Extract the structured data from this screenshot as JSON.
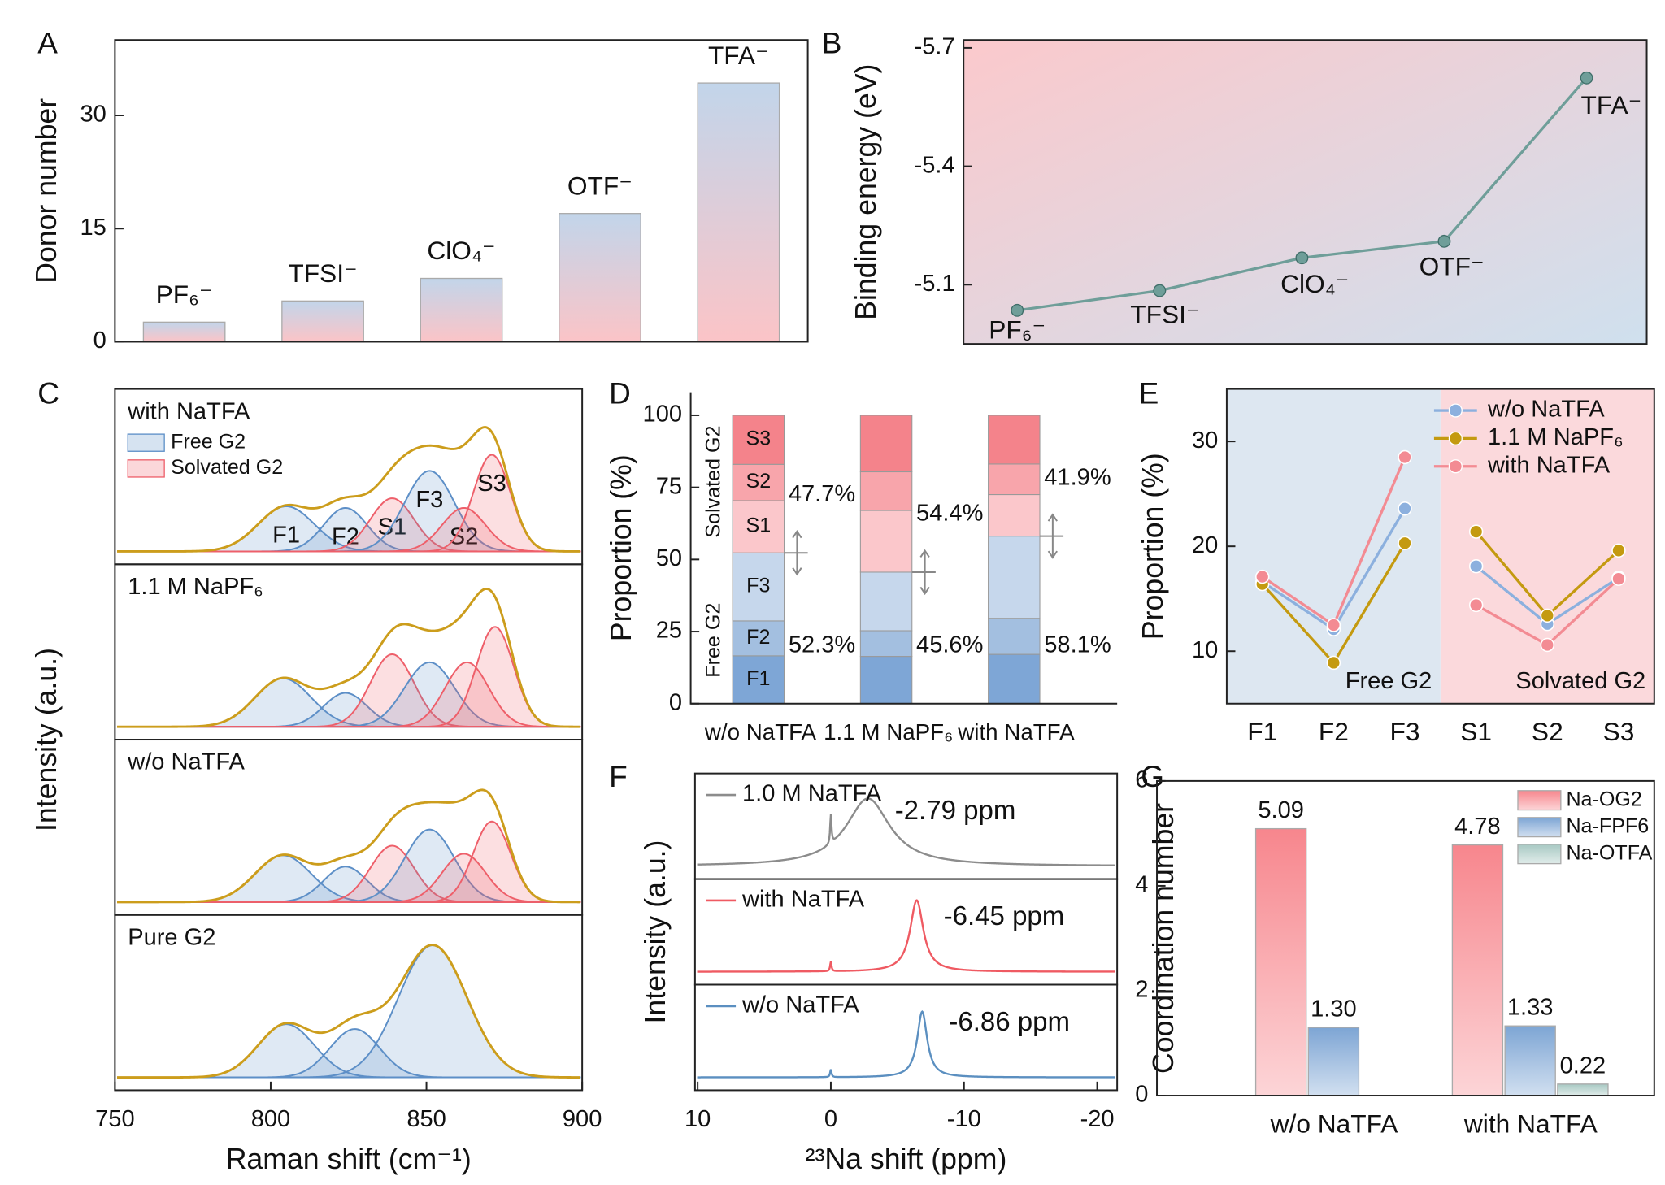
{
  "chart_data": [
    {
      "type": "bar",
      "panel": "A",
      "ylabel": "Donor number",
      "categories": [
        "PF₆⁻",
        "TFSI⁻",
        "ClO₄⁻",
        "OTF⁻",
        "TFA⁻"
      ],
      "values": [
        2.6,
        5.4,
        8.4,
        17.0,
        34.3
      ],
      "colors": [
        "#c2d5ea",
        "#fbc4c7"
      ],
      "ylim": [
        0,
        40
      ],
      "yticks": [
        0,
        15,
        30
      ]
    },
    {
      "type": "line",
      "panel": "B",
      "ylabel": "Binding energy (eV)",
      "categories": [
        "PF₆⁻",
        "TFSI⁻",
        "ClO₄⁻",
        "OTF⁻",
        "TFA⁻"
      ],
      "values": [
        -5.035,
        -5.085,
        -5.168,
        -5.21,
        -5.624
      ],
      "color": "#6f9e99",
      "background": [
        "#fbc9cc",
        "#cfe0ee"
      ],
      "ylim": [
        -4.95,
        -5.72
      ],
      "yticks": [
        -5.1,
        -5.4,
        -5.7
      ]
    },
    {
      "type": "spectra",
      "panel": "C",
      "xlabel": "Raman shift (cm⁻¹)",
      "ylabel": "Intensity (a.u.)",
      "xlim": [
        750,
        900
      ],
      "xticks": [
        750,
        800,
        850,
        900
      ],
      "fit_color": "#cc9d1c",
      "legend": [
        {
          "name": "Free G2",
          "color": "#5d8fc7"
        },
        {
          "name": "Solvated G2",
          "color": "#ee5f6a"
        }
      ],
      "series": [
        {
          "name": "with NaTFA",
          "peaks": [
            {
              "label": "F1",
              "center": 805,
              "height": 0.28,
              "width": 9,
              "color": "#5d8fc7"
            },
            {
              "label": "F2",
              "center": 824,
              "height": 0.27,
              "width": 7,
              "color": "#5d8fc7"
            },
            {
              "label": "S1",
              "center": 839,
              "height": 0.33,
              "width": 7,
              "color": "#ee5f6a"
            },
            {
              "label": "F3",
              "center": 851,
              "height": 0.5,
              "width": 8,
              "color": "#5d8fc7"
            },
            {
              "label": "S2",
              "center": 862,
              "height": 0.27,
              "width": 7,
              "color": "#ee5f6a"
            },
            {
              "label": "S3",
              "center": 871,
              "height": 0.6,
              "width": 6,
              "color": "#ee5f6a"
            }
          ]
        },
        {
          "name": "1.1 M NaPF₆",
          "peaks": [
            {
              "center": 804,
              "height": 0.3,
              "width": 9,
              "color": "#5d8fc7"
            },
            {
              "center": 824,
              "height": 0.21,
              "width": 7,
              "color": "#5d8fc7"
            },
            {
              "center": 839,
              "height": 0.45,
              "width": 7,
              "color": "#ee5f6a"
            },
            {
              "center": 851,
              "height": 0.4,
              "width": 8,
              "color": "#5d8fc7"
            },
            {
              "center": 863,
              "height": 0.4,
              "width": 7,
              "color": "#ee5f6a"
            },
            {
              "center": 872,
              "height": 0.62,
              "width": 6,
              "color": "#ee5f6a"
            }
          ]
        },
        {
          "name": "w/o NaTFA",
          "peaks": [
            {
              "center": 804,
              "height": 0.29,
              "width": 9,
              "color": "#5d8fc7"
            },
            {
              "center": 824,
              "height": 0.22,
              "width": 7,
              "color": "#5d8fc7"
            },
            {
              "center": 839,
              "height": 0.35,
              "width": 7,
              "color": "#ee5f6a"
            },
            {
              "center": 851,
              "height": 0.45,
              "width": 8,
              "color": "#5d8fc7"
            },
            {
              "center": 862,
              "height": 0.3,
              "width": 7,
              "color": "#ee5f6a"
            },
            {
              "center": 871,
              "height": 0.5,
              "width": 6,
              "color": "#ee5f6a"
            }
          ]
        },
        {
          "name": "Pure G2",
          "peaks": [
            {
              "center": 805,
              "height": 0.33,
              "width": 9,
              "color": "#5d8fc7"
            },
            {
              "center": 827,
              "height": 0.3,
              "width": 8,
              "color": "#5d8fc7"
            },
            {
              "center": 852,
              "height": 0.82,
              "width": 11,
              "color": "#5d8fc7"
            }
          ]
        }
      ]
    },
    {
      "type": "stacked_bar",
      "panel": "D",
      "ylabel": "Proportion (%)",
      "categories": [
        "w/o NaTFA",
        "1.1 M NaPF₆",
        "with NaTFA"
      ],
      "series": [
        {
          "name": "F1",
          "color": "#7ea6d6",
          "values": [
            16.6,
            16.4,
            17.1
          ]
        },
        {
          "name": "F2",
          "color": "#a3bfe0",
          "values": [
            12.1,
            8.9,
            12.5
          ]
        },
        {
          "name": "F3",
          "color": "#c6d7ec",
          "values": [
            23.6,
            20.3,
            28.5
          ]
        },
        {
          "name": "S1",
          "color": "#fbc7cb",
          "values": [
            18.1,
            21.4,
            14.4
          ]
        },
        {
          "name": "S2",
          "color": "#f8a5ab",
          "values": [
            12.6,
            13.4,
            10.6
          ]
        },
        {
          "name": "S3",
          "color": "#f4838b",
          "values": [
            17.0,
            19.6,
            16.9
          ]
        }
      ],
      "group_labels": [
        {
          "text": "Free G2",
          "color": "#3e6ea8"
        },
        {
          "text": "Solvated G2",
          "color": "#e8262d"
        }
      ],
      "free_labels": [
        "52.3%",
        "45.6%",
        "58.1%"
      ],
      "solvated_labels": [
        "47.7%",
        "54.4%",
        "41.9%"
      ],
      "ylim": [
        0,
        108
      ],
      "yticks": [
        0,
        25,
        50,
        75,
        100
      ]
    },
    {
      "type": "line",
      "panel": "E",
      "ylabel": "Proportion (%)",
      "categories": [
        "F1",
        "F2",
        "F3",
        "S1",
        "S2",
        "S3"
      ],
      "series": [
        {
          "name": "w/o NaTFA",
          "color": "#8cb0de",
          "values": [
            16.6,
            12.1,
            23.6,
            18.1,
            12.6,
            17.0
          ]
        },
        {
          "name": "1.1 M NaPF₆",
          "color": "#c49a10",
          "values": [
            16.4,
            8.9,
            20.3,
            21.4,
            13.4,
            19.6
          ]
        },
        {
          "name": "with NaTFA",
          "color": "#f38b93",
          "values": [
            17.1,
            12.5,
            28.5,
            14.4,
            10.6,
            16.9
          ]
        }
      ],
      "regions": [
        {
          "label": "Free G2",
          "from": 0,
          "to": 2,
          "color": "#dde7f1",
          "text_color": "#3e6ea8"
        },
        {
          "label": "Solvated G2",
          "from": 3,
          "to": 5,
          "color": "#fbd9dc",
          "text_color": "#e8262d"
        }
      ],
      "legend": "top-right",
      "ylim": [
        5,
        35
      ],
      "yticks": [
        10,
        20,
        30
      ]
    },
    {
      "type": "nmr",
      "panel": "F",
      "xlabel": "²³Na shift (ppm)",
      "ylabel": "Intensity (a.u.)",
      "xlim": [
        10.2,
        -21.5
      ],
      "xticks": [
        10,
        0,
        -10,
        -20
      ],
      "series": [
        {
          "name": "1.0 M NaTFA",
          "color": "#8c8c8c",
          "shift": -2.79,
          "shift_label": "-2.79 ppm",
          "height": 0.7,
          "width": 2.0,
          "ref_shift": 0,
          "ref_height": 0.3
        },
        {
          "name": "with NaTFA",
          "color": "#ef5a62",
          "shift": -6.45,
          "shift_label": "-6.45 ppm",
          "height": 0.74,
          "width": 0.6,
          "ref_shift": 0,
          "ref_height": 0.1
        },
        {
          "name": "w/o NaTFA",
          "color": "#5b8fc0",
          "shift": -6.86,
          "shift_label": "-6.86 ppm",
          "height": 0.68,
          "width": 0.45,
          "ref_shift": 0,
          "ref_height": 0.08
        }
      ]
    },
    {
      "type": "bar",
      "panel": "G",
      "ylabel": "Coordination number",
      "categories": [
        "w/o NaTFA",
        "with NaTFA"
      ],
      "series": [
        {
          "name": "Na-OG2",
          "color": "#f7868d",
          "label_color": "#e8262d",
          "values": [
            5.09,
            4.78
          ],
          "value_labels": [
            "5.09",
            "4.78"
          ]
        },
        {
          "name": "Na-FPF6",
          "color": "#7da5d4",
          "label_color": "#3e6ea8",
          "values": [
            1.3,
            1.33
          ],
          "value_labels": [
            "1.30",
            "1.33"
          ]
        },
        {
          "name": "Na-OTFA",
          "color": "#a8c9c3",
          "label_color": "#4a9590",
          "values": [
            null,
            0.22
          ],
          "value_labels": [
            null,
            "0.22"
          ]
        }
      ],
      "legend": "top-right",
      "ylim": [
        0,
        6
      ],
      "yticks": [
        0,
        2,
        4,
        6
      ]
    }
  ]
}
